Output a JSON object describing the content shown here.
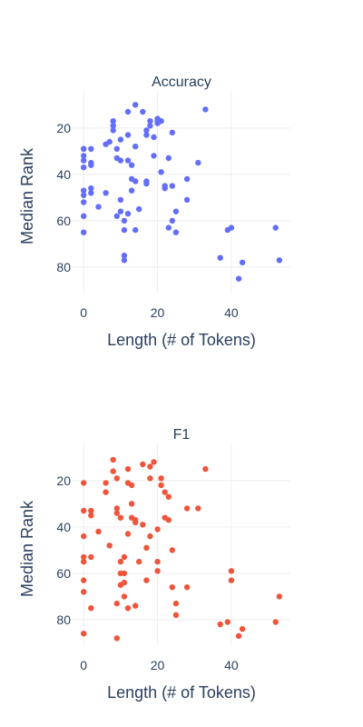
{
  "chart_data": [
    {
      "type": "scatter",
      "title": "Accuracy",
      "xlabel": "Length (# of Tokens)",
      "ylabel": "Median Rank",
      "xlim": [
        -3,
        56
      ],
      "ylim": [
        91,
        4
      ],
      "y_reversed": true,
      "xticks": [
        0,
        20,
        40
      ],
      "yticks": [
        20,
        40,
        60,
        80
      ],
      "grid": true,
      "color": "#636efa",
      "x": [
        0,
        0,
        0,
        0,
        0,
        0,
        0,
        0,
        0,
        0,
        2,
        2,
        2,
        2,
        2,
        4,
        6,
        6,
        7,
        8,
        8,
        8,
        9,
        9,
        9,
        10,
        10,
        10,
        10,
        11,
        11,
        11,
        11,
        12,
        12,
        12,
        12,
        13,
        13,
        13,
        14,
        14,
        14,
        14,
        15,
        16,
        17,
        17,
        17,
        17,
        18,
        18,
        19,
        19,
        20,
        20,
        20,
        21,
        21,
        22,
        22,
        23,
        23,
        24,
        24,
        24,
        25,
        25,
        28,
        28,
        31,
        33,
        37,
        39,
        40,
        42,
        43,
        52,
        53
      ],
      "y": [
        29,
        32,
        49,
        52,
        58,
        65,
        37,
        47,
        34,
        29,
        35,
        46,
        36,
        48,
        29,
        54,
        48,
        27,
        26,
        17,
        19,
        21,
        29,
        33,
        58,
        34,
        25,
        51,
        56,
        77,
        75,
        64,
        60,
        34,
        57,
        13,
        23,
        42,
        36,
        47,
        28,
        43,
        64,
        10,
        55,
        13,
        43,
        44,
        21,
        23,
        17,
        19,
        24,
        32,
        16,
        18,
        17,
        17,
        39,
        46,
        45,
        33,
        63,
        22,
        60,
        45,
        65,
        56,
        51,
        42,
        35,
        12,
        76,
        64,
        63,
        85,
        78,
        63,
        77
      ]
    },
    {
      "type": "scatter",
      "title": "F1",
      "xlabel": "Length (# of Tokens)",
      "ylabel": "Median Rank",
      "xlim": [
        -3,
        56
      ],
      "ylim": [
        91,
        4
      ],
      "y_reversed": true,
      "xticks": [
        0,
        20,
        40
      ],
      "yticks": [
        20,
        40,
        60,
        80
      ],
      "grid": true,
      "color": "#ef553b",
      "x": [
        0,
        0,
        0,
        0,
        0,
        0,
        0,
        0,
        2,
        2,
        2,
        2,
        4,
        6,
        6,
        7,
        8,
        8,
        9,
        9,
        9,
        9,
        9,
        10,
        10,
        10,
        10,
        11,
        11,
        11,
        11,
        12,
        12,
        12,
        12,
        13,
        13,
        13,
        14,
        14,
        14,
        15,
        16,
        16,
        17,
        17,
        18,
        18,
        18,
        19,
        20,
        20,
        20,
        21,
        21,
        22,
        22,
        23,
        23,
        24,
        24,
        25,
        25,
        28,
        28,
        31,
        33,
        37,
        39,
        40,
        40,
        42,
        43,
        52,
        53
      ],
      "y": [
        21,
        44,
        53,
        55,
        63,
        68,
        86,
        33,
        35,
        53,
        33,
        75,
        42,
        21,
        25,
        48,
        11,
        16,
        19,
        32,
        34,
        73,
        88,
        36,
        60,
        65,
        55,
        70,
        64,
        60,
        53,
        43,
        75,
        15,
        21,
        22,
        36,
        30,
        38,
        74,
        37,
        55,
        13,
        39,
        49,
        63,
        14,
        44,
        19,
        12,
        41,
        55,
        59,
        22,
        19,
        25,
        36,
        27,
        37,
        66,
        50,
        73,
        78,
        32,
        66,
        32,
        15,
        82,
        81,
        59,
        63,
        87,
        84,
        81,
        70
      ]
    }
  ]
}
